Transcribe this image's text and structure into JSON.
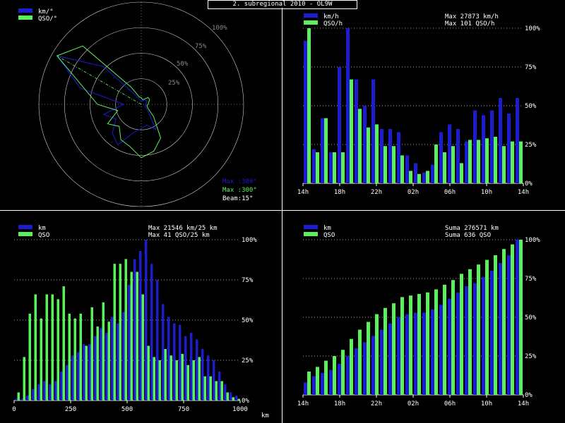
{
  "title": "2. subregional 2010 - OL9W",
  "colors": {
    "km": "#1c1cd0",
    "qso": "#5cf05c",
    "axis": "#ffffff",
    "grid": "#d0d0d0",
    "bg": "#000000"
  },
  "chart_data": [
    {
      "type": "polar",
      "legend": [
        "km/°",
        "QSO/°"
      ],
      "ring_labels": [
        "25%",
        "50%",
        "75%",
        "100%"
      ],
      "info": {
        "max_km": "Max :300°",
        "max_qso": "Max :300°",
        "beam": "Beam:15°"
      },
      "angles_deg": [
        0,
        15,
        30,
        45,
        60,
        75,
        90,
        105,
        120,
        135,
        150,
        165,
        180,
        195,
        210,
        225,
        240,
        255,
        270,
        285,
        300,
        315,
        330,
        345
      ],
      "series": [
        {
          "name": "km/°",
          "values": [
            0.03,
            0.03,
            0.05,
            0.06,
            0.07,
            0.05,
            0.05,
            0.04,
            0.05,
            0.1,
            0.3,
            0.22,
            0.25,
            0.3,
            0.48,
            0.42,
            0.3,
            0.4,
            0.18,
            0.65,
            1.0,
            0.55,
            0.1,
            0.04
          ]
        },
        {
          "name": "QSO/°",
          "values": [
            0.07,
            0.05,
            0.06,
            0.1,
            0.1,
            0.08,
            0.07,
            0.06,
            0.08,
            0.18,
            0.4,
            0.5,
            0.55,
            0.45,
            0.42,
            0.32,
            0.4,
            0.25,
            0.45,
            0.6,
            1.0,
            0.85,
            0.2,
            0.08
          ]
        }
      ]
    },
    {
      "type": "bar",
      "legend": [
        "km/h",
        "QSO/h"
      ],
      "info": [
        "Max 27873 km/h",
        "Max  101 QSO/h"
      ],
      "ylim": [
        0,
        100
      ],
      "y_ticks": [
        "0%",
        "25%",
        "50%",
        "75%",
        "100%"
      ],
      "x_ticks": [
        "14h",
        "18h",
        "22h",
        "02h",
        "06h",
        "10h",
        "14h"
      ],
      "series": [
        {
          "name": "km/h",
          "values": [
            92,
            22,
            42,
            20,
            75,
            100,
            67,
            50,
            67,
            35,
            35,
            33,
            18,
            13,
            7,
            12,
            33,
            38,
            35,
            27,
            47,
            44,
            47,
            55,
            45,
            55
          ]
        },
        {
          "name": "QSO/h",
          "values": [
            100,
            20,
            42,
            20,
            20,
            67,
            48,
            36,
            38,
            24,
            24,
            18,
            8,
            6,
            8,
            25,
            20,
            24,
            13,
            28,
            28,
            29,
            30,
            24,
            27,
            27
          ]
        }
      ]
    },
    {
      "type": "bar",
      "legend": [
        "km",
        "QSO"
      ],
      "info": [
        "Max 21546 km/25 km",
        "Max   41 QSO/25 km"
      ],
      "ylim": [
        0,
        100
      ],
      "y_ticks": [
        "0%",
        "25%",
        "50%",
        "75%",
        "100%"
      ],
      "x_ticks": [
        "0",
        "250",
        "500",
        "750",
        "1000"
      ],
      "xlabel": "km",
      "series": [
        {
          "name": "km",
          "values": [
            1,
            1,
            3,
            7,
            10,
            12,
            10,
            12,
            18,
            22,
            28,
            30,
            35,
            35,
            40,
            45,
            42,
            52,
            48,
            55,
            72,
            88,
            93,
            100,
            85,
            75,
            60,
            52,
            48,
            47,
            40,
            42,
            38,
            32,
            28,
            25,
            18,
            10,
            5,
            3
          ]
        },
        {
          "name": "QSO",
          "values": [
            5,
            27,
            54,
            66,
            51,
            66,
            66,
            63,
            71,
            54,
            51,
            54,
            34,
            58,
            46,
            61,
            49,
            85,
            85,
            88,
            80,
            80,
            66,
            34,
            27,
            25,
            32,
            28,
            25,
            29,
            22,
            25,
            27,
            15,
            15,
            12,
            12,
            5,
            2,
            1
          ]
        }
      ]
    },
    {
      "type": "bar",
      "legend": [
        "km",
        "QSO"
      ],
      "info": [
        "Suma 276571 km",
        "Suma   636 QSO"
      ],
      "ylim": [
        0,
        100
      ],
      "y_ticks": [
        "0%",
        "25%",
        "50%",
        "75%",
        "100%"
      ],
      "x_ticks": [
        "14h",
        "18h",
        "22h",
        "02h",
        "06h",
        "10h",
        "14h"
      ],
      "series": [
        {
          "name": "km",
          "values": [
            8,
            12,
            14,
            16,
            20,
            25,
            30,
            34,
            38,
            42,
            46,
            50,
            52,
            53,
            53,
            55,
            58,
            62,
            66,
            70,
            72,
            76,
            80,
            85,
            90,
            100
          ]
        },
        {
          "name": "QSO",
          "values": [
            15,
            18,
            22,
            25,
            29,
            36,
            42,
            47,
            52,
            56,
            59,
            63,
            64,
            65,
            66,
            68,
            71,
            74,
            78,
            81,
            84,
            87,
            90,
            94,
            97,
            100
          ]
        }
      ]
    }
  ]
}
